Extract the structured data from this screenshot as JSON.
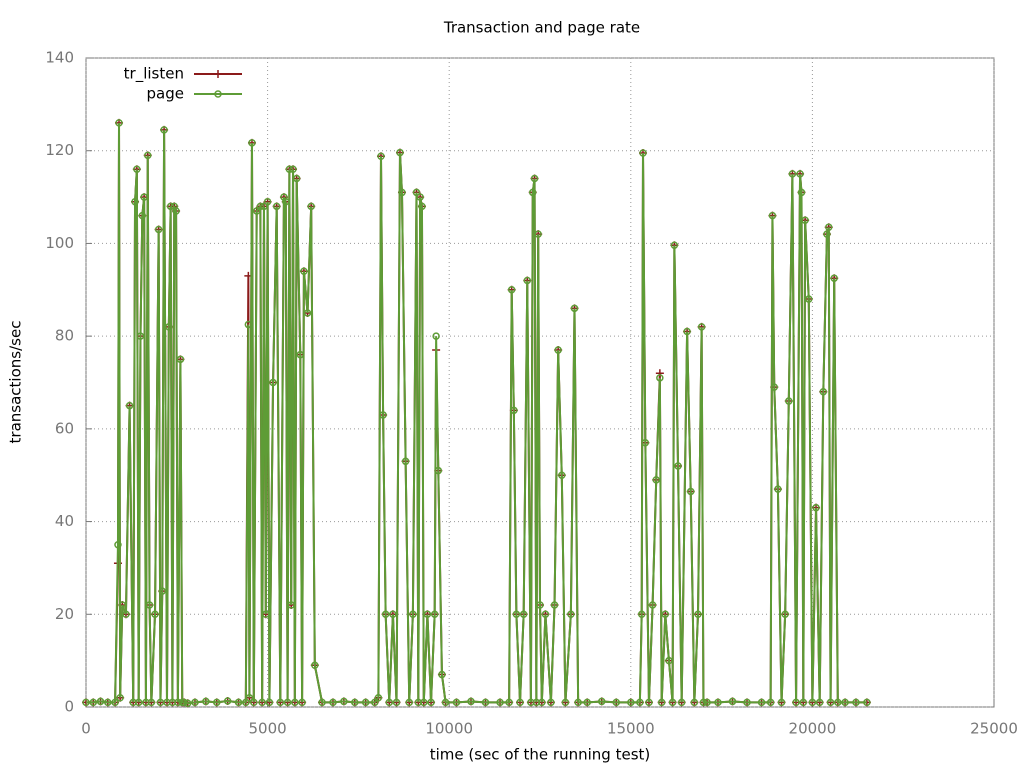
{
  "chart_data": {
    "type": "line",
    "title": "Transaction and page rate",
    "xlabel": "time (sec of the running test)",
    "ylabel": "transactions/sec",
    "xlim": [
      0,
      25000
    ],
    "xticks": [
      0,
      5000,
      10000,
      15000,
      20000,
      25000
    ],
    "ylim": [
      0,
      140
    ],
    "yticks": [
      0,
      20,
      40,
      60,
      80,
      100,
      120,
      140
    ],
    "grid": true,
    "legend": "top-left",
    "x": [
      0,
      200,
      400,
      600,
      800,
      880,
      909,
      940,
      1000,
      1100,
      1200,
      1300,
      1350,
      1400,
      1450,
      1500,
      1550,
      1600,
      1650,
      1700,
      1750,
      1800,
      1900,
      2000,
      2050,
      2100,
      2150,
      2230,
      2280,
      2330,
      2380,
      2430,
      2480,
      2530,
      2600,
      2650,
      2700,
      2800,
      3000,
      3300,
      3600,
      3900,
      4200,
      4400,
      4470,
      4500,
      4570,
      4620,
      4700,
      4800,
      4850,
      4900,
      4950,
      5000,
      5050,
      5150,
      5250,
      5350,
      5450,
      5500,
      5550,
      5600,
      5650,
      5700,
      5750,
      5800,
      5900,
      5950,
      6000,
      6100,
      6200,
      6300,
      6500,
      6800,
      7100,
      7400,
      7700,
      7950,
      8050,
      8122,
      8180,
      8250,
      8350,
      8450,
      8550,
      8645,
      8700,
      8800,
      8900,
      9000,
      9100,
      9150,
      9200,
      9250,
      9300,
      9400,
      9500,
      9600,
      9640,
      9700,
      9800,
      9900,
      10200,
      10600,
      11000,
      11400,
      11650,
      11720,
      11780,
      11850,
      11950,
      12050,
      12150,
      12250,
      12300,
      12350,
      12400,
      12450,
      12500,
      12550,
      12650,
      12800,
      12900,
      13000,
      13100,
      13200,
      13350,
      13450,
      13550,
      13800,
      14200,
      14600,
      15000,
      15250,
      15300,
      15336,
      15400,
      15500,
      15600,
      15700,
      15800,
      15850,
      15950,
      16050,
      16150,
      16200,
      16300,
      16400,
      16550,
      16650,
      16750,
      16850,
      16950,
      17000,
      17100,
      17400,
      17800,
      18200,
      18600,
      18850,
      18900,
      18950,
      19050,
      19150,
      19250,
      19350,
      19450,
      19550,
      19660,
      19700,
      19750,
      19800,
      19900,
      20000,
      20100,
      20200,
      20300,
      20400,
      20450,
      20500,
      20600,
      20700,
      20900,
      21200,
      21500
    ],
    "series": [
      {
        "name": "tr_listen",
        "color": "#8b1a1a",
        "marker": "plus",
        "values": [
          1,
          1,
          1.2,
          1,
          1,
          31,
          126,
          2,
          22,
          20,
          65,
          1,
          109,
          116,
          1,
          80,
          106,
          110,
          1,
          119,
          22,
          1,
          20,
          103,
          1,
          25,
          124.5,
          1,
          82,
          108,
          1,
          108,
          107,
          1,
          75,
          1,
          1,
          0.8,
          1,
          1.2,
          1,
          1.3,
          1,
          1,
          93,
          2,
          121.7,
          1,
          107,
          108,
          1,
          108,
          20,
          109,
          1,
          70,
          108,
          1,
          110,
          109,
          1,
          116,
          22,
          116,
          1,
          114,
          76,
          1,
          94,
          85,
          108,
          9,
          1,
          1,
          1.2,
          1,
          1,
          1,
          2,
          118.8,
          63,
          20,
          1,
          20,
          1,
          119.6,
          111,
          53,
          1,
          20,
          111,
          1,
          110,
          108,
          1,
          20,
          1,
          20,
          77,
          51,
          7,
          1,
          1,
          1.2,
          1,
          1,
          1,
          90,
          64,
          20,
          1,
          20,
          92,
          1,
          111,
          114,
          1,
          102,
          22,
          1,
          20,
          1,
          22,
          77,
          50,
          1,
          20,
          86,
          1,
          1,
          1.2,
          1,
          1,
          1,
          20,
          119.5,
          57,
          1,
          22,
          49,
          72,
          1,
          20,
          10,
          1,
          99.6,
          52,
          1,
          81,
          46.5,
          1,
          20,
          82,
          1,
          1,
          1,
          1.2,
          1,
          1,
          1,
          106,
          69,
          47,
          1,
          20,
          66,
          115,
          1,
          115,
          111,
          1,
          105,
          88,
          1,
          43,
          1,
          68,
          102,
          103.5,
          1,
          92.5,
          1,
          1,
          1,
          1
        ]
      },
      {
        "name": "page",
        "color": "#5e9c36",
        "marker": "circle",
        "values": [
          1,
          1,
          1.2,
          1,
          1,
          35,
          126,
          2,
          22,
          20,
          65,
          1,
          109,
          116,
          1,
          80,
          106,
          110,
          1,
          119,
          22,
          1,
          20,
          103,
          1,
          25,
          124.5,
          1,
          82,
          108,
          1,
          108,
          107,
          1,
          75,
          1,
          1,
          0.8,
          1,
          1.2,
          1,
          1.3,
          1,
          1,
          82.5,
          2,
          121.7,
          1,
          107,
          108,
          1,
          108,
          20,
          109,
          1,
          70,
          108,
          1,
          110,
          109,
          1,
          116,
          22,
          116,
          1,
          114,
          76,
          1,
          94,
          85,
          108,
          9,
          1,
          1,
          1.2,
          1,
          1,
          1,
          2,
          118.8,
          63,
          20,
          1,
          20,
          1,
          119.6,
          111,
          53,
          1,
          20,
          111,
          1,
          110,
          108,
          1,
          20,
          1,
          20,
          80,
          51,
          7,
          1,
          1,
          1.2,
          1,
          1,
          1,
          90,
          64,
          20,
          1,
          20,
          92,
          1,
          111,
          114,
          1,
          102,
          22,
          1,
          20,
          1,
          22,
          77,
          50,
          1,
          20,
          86,
          1,
          1,
          1.2,
          1,
          1,
          1,
          20,
          119.5,
          57,
          1,
          22,
          49,
          71,
          1,
          20,
          10,
          1,
          99.6,
          52,
          1,
          81,
          46.5,
          1,
          20,
          82,
          1,
          1,
          1,
          1.2,
          1,
          1,
          1,
          106,
          69,
          47,
          1,
          20,
          66,
          115,
          1,
          115,
          111,
          1,
          105,
          88,
          1,
          43,
          1,
          68,
          102,
          103.5,
          1,
          92.5,
          1,
          1,
          1,
          1
        ]
      }
    ]
  }
}
